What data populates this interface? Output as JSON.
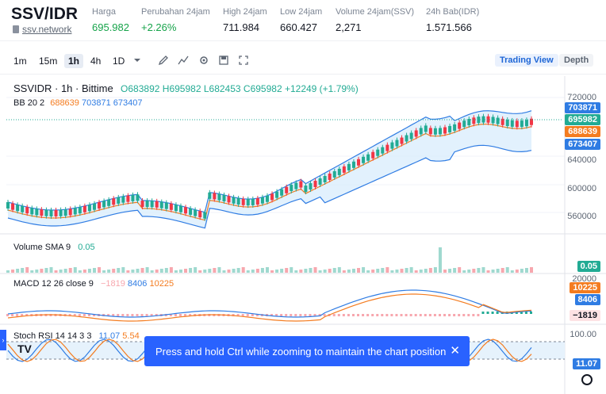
{
  "header": {
    "pair": "SSV/IDR",
    "site": "ssv.network",
    "stats": [
      {
        "label": "Harga",
        "value": "695.982",
        "color": "green"
      },
      {
        "label": "Perubahan 24jam",
        "value": "+2.26%",
        "color": "green"
      },
      {
        "label": "High 24jam",
        "value": "711.984",
        "color": "normal"
      },
      {
        "label": "Low 24jam",
        "value": "660.427",
        "color": "normal"
      },
      {
        "label": "Volume 24jam(SSV)",
        "value": "2,271",
        "color": "normal"
      },
      {
        "label": "24h Bab(IDR)",
        "value": "1.571.566",
        "color": "normal"
      }
    ]
  },
  "toolbar": {
    "timeframes": [
      "1m",
      "15m",
      "1h",
      "4h",
      "1D"
    ],
    "active_timeframe": "1h",
    "views": [
      "Trading View",
      "Depth"
    ],
    "active_view": "Trading View"
  },
  "chart": {
    "symbol_line": "SSVIDR · 1h · Bittime",
    "ohlc": {
      "o": "O683892",
      "h": "H695982",
      "l": "L682453",
      "c": "C695982",
      "chg": "+12249 (+1.79%)"
    },
    "bb": {
      "label": "BB 20 2",
      "v1": "688639",
      "v2": "703871",
      "v3": "673407"
    },
    "price_axis": [
      "720000",
      "640000",
      "600000",
      "560000"
    ],
    "price_badges": [
      {
        "value": "703871",
        "color": "#2f7ce3"
      },
      {
        "value": "695982",
        "color": "#22ab94"
      },
      {
        "value": "688639",
        "color": "#f47c20"
      },
      {
        "value": "673407",
        "color": "#2f7ce3"
      }
    ],
    "volume": {
      "label": "Volume SMA 9",
      "value": "0.05",
      "badge": "0.05"
    },
    "macd": {
      "label": "MACD 12 26 close 9",
      "hist": "−1819",
      "macd": "8406",
      "signal": "10225",
      "axis_top": "20000",
      "badges": [
        "10225",
        "8406",
        "−1819"
      ]
    },
    "stoch": {
      "label": "Stoch RSI 14 14 3 3",
      "k": "11.07",
      "d": "5.54",
      "axis_top": "100.00",
      "badge": "11.07"
    }
  },
  "toast": {
    "message": "Press and hold Ctrl while zooming to maintain the chart position"
  },
  "logo_text": "TV",
  "colors": {
    "up": "#22ab94",
    "down": "#f23645",
    "bb": "#2f7ce3",
    "basis": "#f47c20",
    "accent": "#2962ff"
  }
}
